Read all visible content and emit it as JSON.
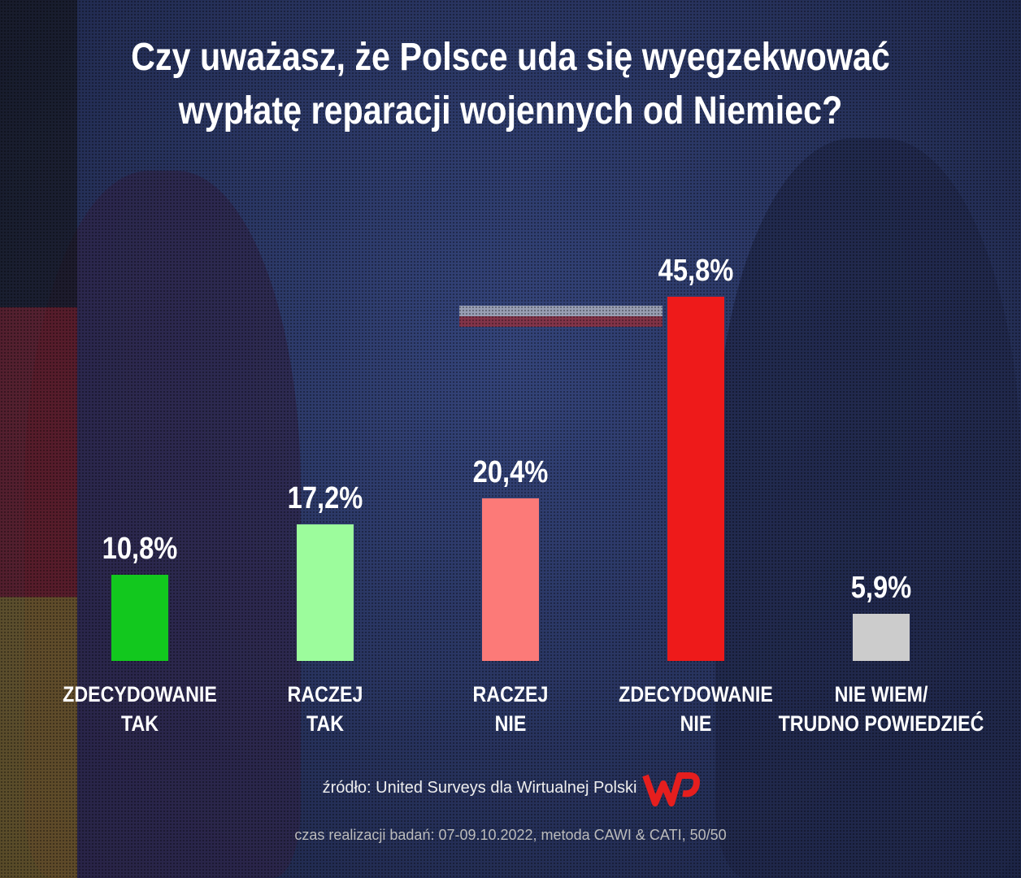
{
  "chart_data": {
    "type": "bar",
    "title": "Czy uważasz, że Polsce uda się wyegzekwować\nwypłatę reparacji wojennych od Niemiec?",
    "categories": [
      "ZDECYDOWANIE\nTAK",
      "RACZEJ\nTAK",
      "RACZEJ\nNIE",
      "ZDECYDOWANIE\nNIE",
      "NIE WIEM/\nTRUDNO POWIEDZIEĆ"
    ],
    "values": [
      10.8,
      17.2,
      20.4,
      45.8,
      5.9
    ],
    "value_labels": [
      "10,8%",
      "17,2%",
      "20,4%",
      "45,8%",
      "5,9%"
    ],
    "colors": [
      "#12c81e",
      "#9cfc9c",
      "#fc7a78",
      "#ee1a1a",
      "#cccccc"
    ],
    "source": "źródło: United Surveys dla Wirtualnej Polski",
    "note": "czas realizacji badań: 07-09.10.2022, metoda CAWI & CATI, 50/50"
  }
}
